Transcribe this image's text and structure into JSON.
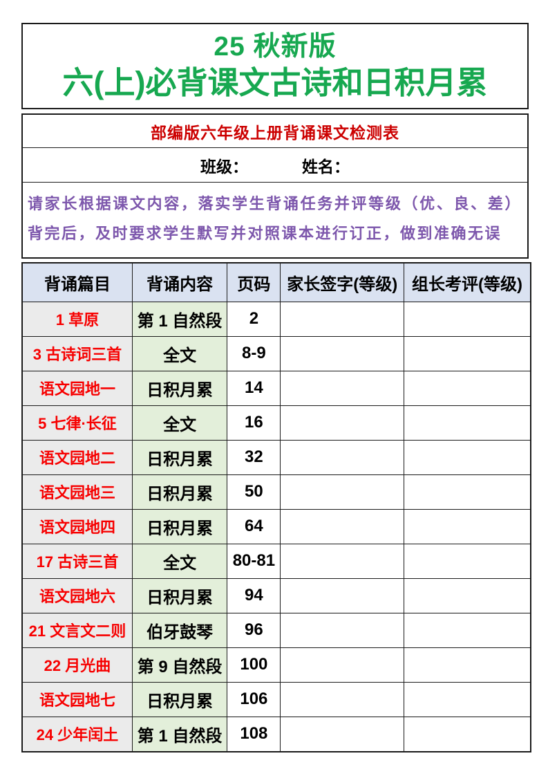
{
  "page": {
    "title_line1": "25 秋新版",
    "title_line2": "六(上)必背课文古诗和日积月累",
    "subtitle": "部编版六年级上册背诵课文检测表",
    "class_label": "班级：",
    "name_label": "姓名：",
    "note": "请家长根据课文内容，落实学生背诵任务并评等级（优、良、差）背完后，及时要求学生默写并对照课本进行订正，做到准确无误"
  },
  "colors": {
    "title_green": "#17a850",
    "subtitle_red": "#cc0000",
    "item_red": "#f70000",
    "note_purple": "#7d57ac",
    "header_bg": "#dae2f1",
    "item_col_bg": "#ebebeb",
    "content_col_bg": "#e3efda",
    "border": "#1a1a1a"
  },
  "table": {
    "headers": [
      "背诵篇目",
      "背诵内容",
      "页码",
      "家长签字(等级)",
      "组长考评(等级)"
    ],
    "rows": [
      {
        "item": "1 草原",
        "content": "第 1 自然段",
        "page": "2",
        "parent_sign": "",
        "leader_review": ""
      },
      {
        "item": "3 古诗词三首",
        "content": "全文",
        "page": "8-9",
        "parent_sign": "",
        "leader_review": ""
      },
      {
        "item": "语文园地一",
        "content": "日积月累",
        "page": "14",
        "parent_sign": "",
        "leader_review": ""
      },
      {
        "item": "5 七律·长征",
        "content": "全文",
        "page": "16",
        "parent_sign": "",
        "leader_review": ""
      },
      {
        "item": "语文园地二",
        "content": "日积月累",
        "page": "32",
        "parent_sign": "",
        "leader_review": ""
      },
      {
        "item": "语文园地三",
        "content": "日积月累",
        "page": "50",
        "parent_sign": "",
        "leader_review": ""
      },
      {
        "item": "语文园地四",
        "content": "日积月累",
        "page": "64",
        "parent_sign": "",
        "leader_review": ""
      },
      {
        "item": "17 古诗三首",
        "content": "全文",
        "page": "80-81",
        "parent_sign": "",
        "leader_review": ""
      },
      {
        "item": "语文园地六",
        "content": "日积月累",
        "page": "94",
        "parent_sign": "",
        "leader_review": ""
      },
      {
        "item": "21 文言文二则",
        "content": "伯牙鼓琴",
        "page": "96",
        "parent_sign": "",
        "leader_review": ""
      },
      {
        "item": "22 月光曲",
        "content": "第 9 自然段",
        "page": "100",
        "parent_sign": "",
        "leader_review": ""
      },
      {
        "item": "语文园地七",
        "content": "日积月累",
        "page": "106",
        "parent_sign": "",
        "leader_review": ""
      },
      {
        "item": "24 少年闰土",
        "content": "第 1 自然段",
        "page": "108",
        "parent_sign": "",
        "leader_review": ""
      }
    ]
  }
}
